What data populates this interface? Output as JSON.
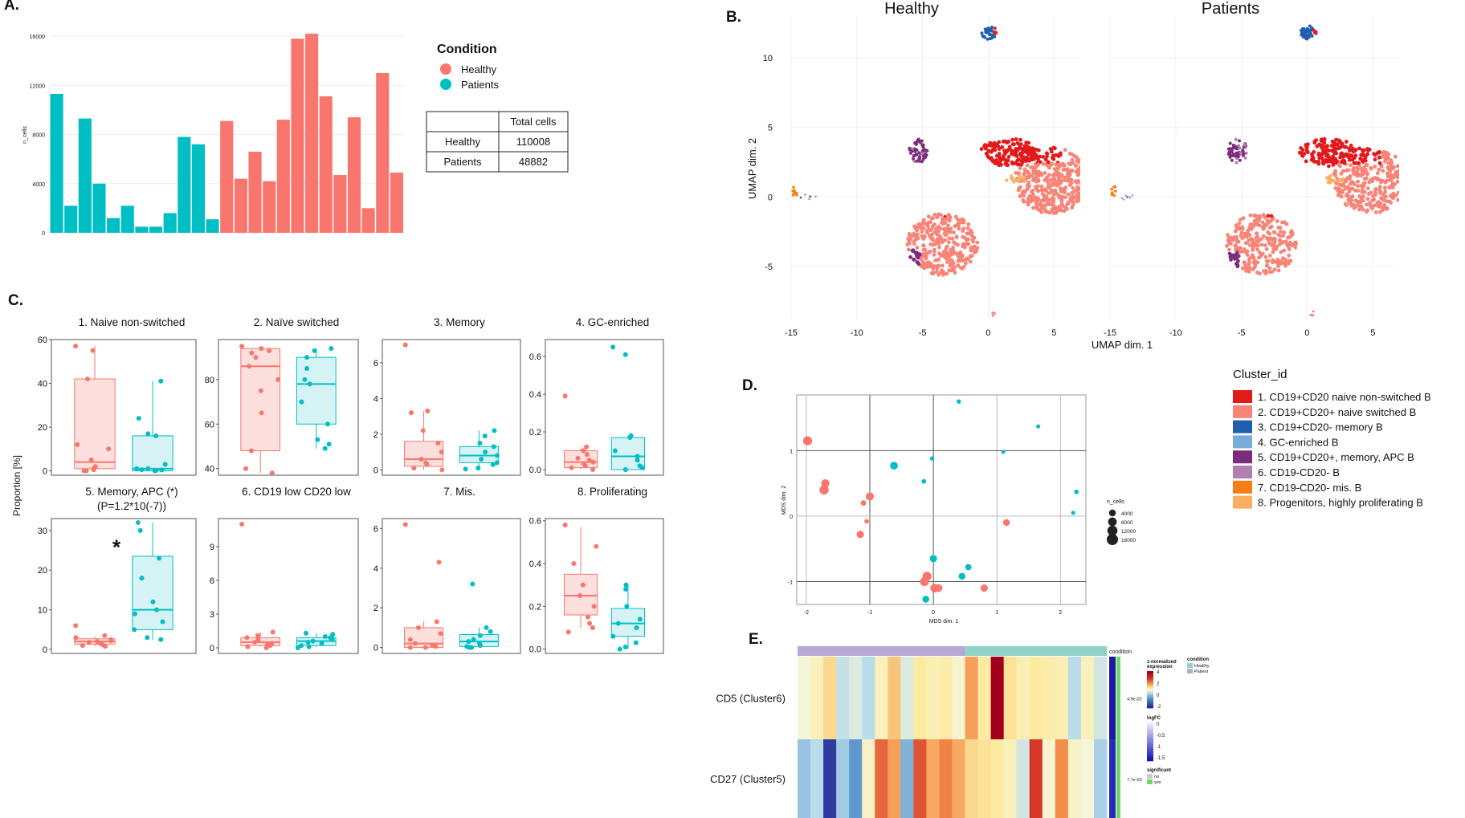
{
  "colors": {
    "healthy": "#f8766d",
    "patients": "#00bfc4",
    "healthy_fill": "#fde0dd",
    "patients_fill": "#d5f3f4"
  },
  "panel_labels": {
    "a": "A.",
    "b": "B.",
    "c": "C.",
    "d": "D.",
    "e": "E."
  },
  "chart_data": [
    {
      "id": "A",
      "type": "bar",
      "ylabel": "n_cells",
      "ylim": [
        0,
        16000
      ],
      "yticks": [
        0,
        4000,
        8000,
        12000,
        16000
      ],
      "series": [
        {
          "name": "Patients",
          "values": [
            11300,
            2200,
            9300,
            4000,
            1200,
            2200,
            500,
            500,
            1600,
            7800,
            7200,
            1100
          ]
        },
        {
          "name": "Healthy",
          "values": [
            9100,
            4400,
            6600,
            4200,
            9200,
            15800,
            16200,
            11100,
            4700,
            9400,
            2000,
            13000,
            4900
          ]
        }
      ],
      "legend": {
        "title": "Condition",
        "entries": [
          "Healthy",
          "Patients"
        ]
      },
      "table": {
        "header": [
          "",
          "Total cells"
        ],
        "rows": [
          [
            "Healthy",
            "110008"
          ],
          [
            "Patients",
            "48882"
          ]
        ]
      }
    },
    {
      "id": "B",
      "type": "scatter",
      "facets": [
        "Healthy",
        "Patients"
      ],
      "xlabel": "UMAP dim. 1",
      "ylabel": "UMAP dim. 2",
      "xlim": [
        -15,
        7
      ],
      "ylim": [
        -8.8,
        13
      ],
      "xticks": [
        -15,
        -10,
        -5,
        0,
        5
      ],
      "yticks": [
        -5,
        0,
        5,
        10
      ],
      "legend_title": "Cluster_id",
      "clusters": [
        {
          "label": "1. CD19+CD20 naive non-switched B",
          "color": "#e31a1c"
        },
        {
          "label": "2. CD19+CD20+ naive switched B",
          "color": "#f88478"
        },
        {
          "label": "3. CD19+CD20- memory B",
          "color": "#1f5fae"
        },
        {
          "label": "4. GC-enriched B",
          "color": "#79abd9"
        },
        {
          "label": "5. CD19+CD20+, memory, APC B",
          "color": "#7b2c7e"
        },
        {
          "label": "6. CD19-CD20- B",
          "color": "#b57eb3"
        },
        {
          "label": "7. CD19-CD20- mis. B",
          "color": "#f57f17"
        },
        {
          "label": "8. Progenitors, highly proliferating B",
          "color": "#fbae5f"
        }
      ]
    },
    {
      "id": "C",
      "type": "box",
      "ylabel": "Proportion [%]",
      "subplots": [
        {
          "title": "1. Naive non-switched",
          "ylim": [
            -2,
            60
          ],
          "yticks": [
            0,
            20,
            40,
            60
          ],
          "yticklabels": [
            "0",
            "20",
            "40",
            "60"
          ],
          "healthy": {
            "q1": 1,
            "med": 4,
            "q3": 42,
            "lo": 0,
            "hi": 57,
            "pts": [
              57,
              55,
              42,
              12,
              10,
              5,
              2,
              1,
              0.5,
              0,
              0
            ]
          },
          "patients": {
            "q1": 0,
            "med": 1,
            "q3": 16,
            "lo": 0,
            "hi": 41,
            "pts": [
              41,
              24,
              17,
              16,
              3,
              1,
              1,
              0.5,
              0.4,
              0.2,
              0
            ]
          }
        },
        {
          "title": "2. Naïve switched",
          "ylim": [
            37,
            98
          ],
          "yticks": [
            40,
            60,
            80
          ],
          "yticklabels": [
            "40",
            "60",
            "80"
          ],
          "healthy": {
            "q1": 48,
            "med": 86,
            "q3": 94,
            "lo": 38,
            "hi": 95,
            "pts": [
              95,
              94,
              93,
              92,
              90,
              86,
              80,
              75,
              65,
              48,
              40,
              38
            ]
          },
          "patients": {
            "q1": 60,
            "med": 78,
            "q3": 90,
            "lo": 49,
            "hi": 94,
            "pts": [
              94,
              93,
              90,
              85,
              80,
              78,
              70,
              60,
              53,
              51,
              49
            ]
          }
        },
        {
          "title": "3. Memory",
          "ylim": [
            -0.3,
            7.3
          ],
          "yticks": [
            0,
            2,
            4,
            6
          ],
          "yticklabels": [
            "0",
            "2",
            "4",
            "6"
          ],
          "healthy": {
            "q1": 0.2,
            "med": 0.6,
            "q3": 1.6,
            "lo": 0,
            "hi": 3.3,
            "pts": [
              7,
              3.3,
              3.2,
              2.2,
              1.5,
              1.0,
              0.6,
              0.4,
              0.3,
              0.1,
              0
            ]
          },
          "patients": {
            "q1": 0.4,
            "med": 0.8,
            "q3": 1.3,
            "lo": 0,
            "hi": 2.2,
            "pts": [
              2.2,
              1.9,
              1.5,
              1.3,
              1.0,
              0.8,
              0.6,
              0.4,
              0.3,
              0.1,
              0.05
            ]
          }
        },
        {
          "title": "4. GC-enriched",
          "ylim": [
            -0.03,
            0.69
          ],
          "yticks": [
            0,
            0.2,
            0.4,
            0.6
          ],
          "yticklabels": [
            "0.0",
            "0.2",
            "0.4",
            "0.6"
          ],
          "healthy": {
            "q1": 0.01,
            "med": 0.04,
            "q3": 0.1,
            "lo": 0,
            "hi": 0.12,
            "pts": [
              0.39,
              0.12,
              0.1,
              0.08,
              0.06,
              0.05,
              0.04,
              0.03,
              0.02,
              0.01,
              0
            ]
          },
          "patients": {
            "q1": 0,
            "med": 0.07,
            "q3": 0.17,
            "lo": 0,
            "hi": 0.18,
            "pts": [
              0.65,
              0.61,
              0.18,
              0.17,
              0.1,
              0.07,
              0.05,
              0.02,
              0.01,
              0,
              0
            ]
          }
        },
        {
          "title": "5. Memory, APC (*)",
          "subtitle": "(P=1.2*10(-7))",
          "ylim": [
            -1,
            33
          ],
          "yticks": [
            0,
            10,
            20,
            30
          ],
          "yticklabels": [
            "0",
            "10",
            "20",
            "30"
          ],
          "sig": "*",
          "healthy": {
            "q1": 1.3,
            "med": 2,
            "q3": 2.7,
            "lo": 0.8,
            "hi": 3.2,
            "pts": [
              6,
              3.5,
              3,
              2.5,
              2.2,
              2,
              1.8,
              1.5,
              1.2,
              1,
              0.8
            ]
          },
          "patients": {
            "q1": 5,
            "med": 10,
            "q3": 23.5,
            "lo": 2.5,
            "hi": 32,
            "pts": [
              32,
              30,
              23,
              18,
              12,
              10,
              9,
              7,
              5,
              3,
              2.5
            ]
          }
        },
        {
          "title": "6. CD19 low CD20 low",
          "ylim": [
            -0.5,
            11.5
          ],
          "yticks": [
            0,
            3,
            6,
            9
          ],
          "yticklabels": [
            "0",
            "3",
            "6",
            "9"
          ],
          "healthy": {
            "q1": 0.2,
            "med": 0.5,
            "q3": 0.9,
            "lo": 0.1,
            "hi": 1.4,
            "pts": [
              11,
              1.4,
              1.1,
              0.9,
              0.7,
              0.5,
              0.4,
              0.3,
              0.2,
              0.1,
              0
            ]
          },
          "patients": {
            "q1": 0.2,
            "med": 0.6,
            "q3": 0.9,
            "lo": 0.1,
            "hi": 1.3,
            "pts": [
              1.3,
              1.2,
              1,
              0.9,
              0.8,
              0.6,
              0.5,
              0.4,
              0.2,
              0.1,
              0
            ]
          }
        },
        {
          "title": "7. Mis.",
          "ylim": [
            -0.3,
            6.5
          ],
          "yticks": [
            0,
            2,
            4,
            6
          ],
          "yticklabels": [
            "0",
            "2",
            "4",
            "6"
          ],
          "healthy": {
            "q1": 0,
            "med": 0.2,
            "q3": 1,
            "lo": 0,
            "hi": 1.3,
            "pts": [
              6.2,
              4.3,
              1.3,
              1,
              0.7,
              0.4,
              0.2,
              0.1,
              0.05,
              0,
              0
            ]
          },
          "patients": {
            "q1": 0.05,
            "med": 0.3,
            "q3": 0.65,
            "lo": 0,
            "hi": 1.0,
            "pts": [
              3.2,
              1.0,
              0.8,
              0.6,
              0.4,
              0.3,
              0.2,
              0.1,
              0.05,
              0,
              0
            ]
          }
        },
        {
          "title": "8. Proliferating",
          "ylim": [
            -0.02,
            0.61
          ],
          "yticks": [
            0,
            0.2,
            0.4,
            0.6
          ],
          "yticklabels": [
            "0.0",
            "0.2",
            "0.4",
            "0.6"
          ],
          "healthy": {
            "q1": 0.16,
            "med": 0.25,
            "q3": 0.35,
            "lo": 0.1,
            "hi": 0.57,
            "pts": [
              0.58,
              0.48,
              0.4,
              0.3,
              0.25,
              0.2,
              0.15,
              0.12,
              0.1,
              0.08
            ]
          },
          "patients": {
            "q1": 0.06,
            "med": 0.12,
            "q3": 0.19,
            "lo": 0,
            "hi": 0.3,
            "pts": [
              0.3,
              0.28,
              0.2,
              0.14,
              0.12,
              0.1,
              0.06,
              0.03,
              0.01,
              0
            ]
          }
        }
      ]
    },
    {
      "id": "D",
      "type": "scatter",
      "xlabel": "MDS dim. 1",
      "ylabel": "MDS dim. 2",
      "xlim": [
        -2.15,
        2.4
      ],
      "ylim": [
        -1.35,
        1.85
      ],
      "xticks": [
        -2,
        -1,
        0,
        1,
        2
      ],
      "yticks": [
        -1,
        0,
        1
      ],
      "size_legend": {
        "title": "n_cells",
        "entries": [
          "4000",
          "8000",
          "12000",
          "16000"
        ]
      },
      "healthy_points": [
        {
          "x": -1.98,
          "y": 1.15,
          "n": 9000
        },
        {
          "x": -1.7,
          "y": 0.5,
          "n": 7000
        },
        {
          "x": -1.72,
          "y": 0.4,
          "n": 9500
        },
        {
          "x": -1.0,
          "y": 0.3,
          "n": 6500
        },
        {
          "x": -1.1,
          "y": 0.2,
          "n": 2000
        },
        {
          "x": -1.05,
          "y": -0.08,
          "n": 1000
        },
        {
          "x": -1.15,
          "y": -0.28,
          "n": 5000
        },
        {
          "x": -0.1,
          "y": -0.92,
          "n": 9000
        },
        {
          "x": -0.14,
          "y": -1.0,
          "n": 9000
        },
        {
          "x": 0.02,
          "y": -1.1,
          "n": 8000
        },
        {
          "x": 0.08,
          "y": -1.1,
          "n": 6000
        },
        {
          "x": 0.8,
          "y": -1.1,
          "n": 5000
        },
        {
          "x": 1.15,
          "y": -0.1,
          "n": 4000
        }
      ],
      "patient_points": [
        {
          "x": -0.62,
          "y": 0.77,
          "n": 6000
        },
        {
          "x": -0.15,
          "y": 0.53,
          "n": 1000
        },
        {
          "x": -0.02,
          "y": 0.88,
          "n": 800
        },
        {
          "x": 0.4,
          "y": 1.75,
          "n": 800
        },
        {
          "x": 1.65,
          "y": 1.37,
          "n": 600
        },
        {
          "x": 1.1,
          "y": 0.98,
          "n": 500
        },
        {
          "x": 2.2,
          "y": 0.05,
          "n": 600
        },
        {
          "x": 2.25,
          "y": 0.37,
          "n": 900
        },
        {
          "x": 0.0,
          "y": -0.65,
          "n": 5000
        },
        {
          "x": 0.55,
          "y": -0.78,
          "n": 3000
        },
        {
          "x": 0.45,
          "y": -0.92,
          "n": 4000
        },
        {
          "x": -0.12,
          "y": -1.27,
          "n": 4000
        }
      ]
    },
    {
      "id": "E",
      "type": "heatmap",
      "rows": [
        "CD5 (Cluster6)",
        "CD27 (Cluster5)"
      ],
      "n_columns": 24,
      "column_condition": [
        "Patient",
        "Patient",
        "Patient",
        "Patient",
        "Patient",
        "Patient",
        "Patient",
        "Patient",
        "Patient",
        "Patient",
        "Patient",
        "Patient",
        "Patient",
        "Healthy",
        "Healthy",
        "Healthy",
        "Healthy",
        "Healthy",
        "Healthy",
        "Healthy",
        "Healthy",
        "Healthy",
        "Healthy",
        "Healthy"
      ],
      "values": [
        [
          0.0,
          0.3,
          0.8,
          -0.4,
          -0.2,
          -0.5,
          0.3,
          1.0,
          -0.2,
          0.6,
          0.4,
          0.5,
          0.1,
          1.4,
          0.6,
          4.0,
          0.7,
          0.4,
          0.6,
          0.5,
          0.4,
          -0.5,
          0.3,
          -0.3
        ],
        [
          -0.9,
          -0.5,
          -3.2,
          -0.8,
          -1.6,
          0.2,
          2.0,
          1.4,
          -1.2,
          2.2,
          1.3,
          1.7,
          1.3,
          0.8,
          0.7,
          0.6,
          0.3,
          -0.3,
          2.5,
          0.1,
          1.6,
          0.2,
          0.0,
          -0.7
        ]
      ],
      "color_range": [
        -3.5,
        4
      ],
      "logFC_values": [
        -1.5,
        -1.3
      ],
      "significant_values": [
        "yes",
        "yes"
      ],
      "pvalues": [
        "4.9e-02",
        "7.7e-03"
      ],
      "condition_label": "condition",
      "legend": {
        "zscore_title": "z-normalized expression",
        "zscore_ticks": [
          "4",
          "2",
          "0",
          "-2"
        ],
        "condition_title": "condition",
        "condition_entries": [
          "Healthy",
          "Patient"
        ],
        "logfc_title": "logFC",
        "logfc_ticks": [
          "0",
          "-0.5",
          "-1",
          "-1.5"
        ],
        "significant_title": "significant",
        "significant_entries": [
          "no",
          "yes"
        ]
      }
    }
  ]
}
